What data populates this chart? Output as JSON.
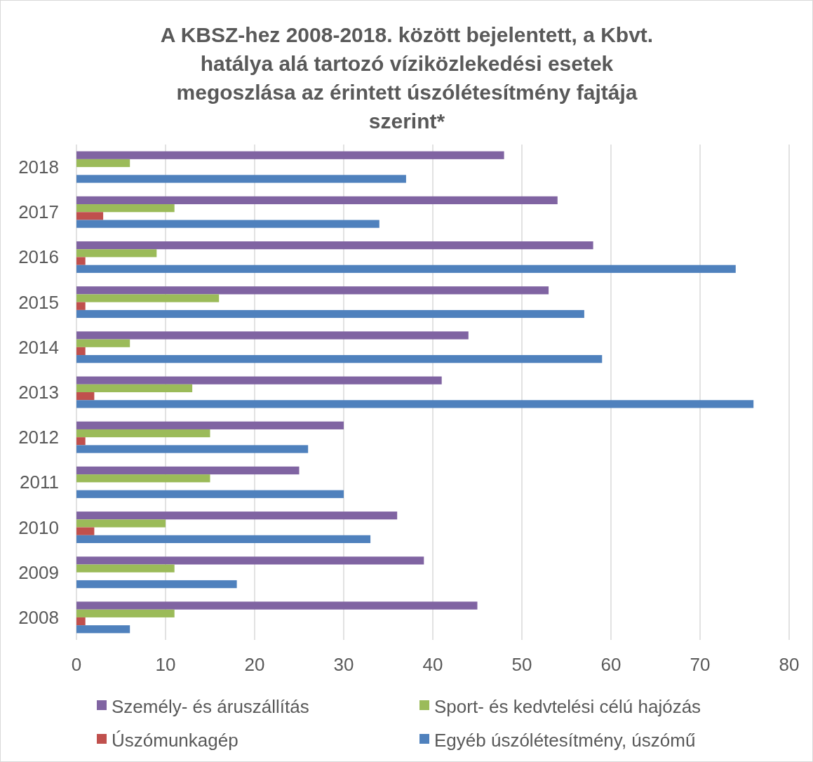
{
  "chart_data": {
    "type": "bar",
    "orientation": "horizontal",
    "title": "A KBSZ-hez 2008-2018. között bejelentett, a Kbvt. hatálya alá tartozó víziközlekedési esetek megoszlása az érintett úszólétesítmény fajtája szerint*",
    "categories": [
      "2018",
      "2017",
      "2016",
      "2015",
      "2014",
      "2013",
      "2012",
      "2011",
      "2010",
      "2009",
      "2008"
    ],
    "series": [
      {
        "name": "Személy- és áruszállítás",
        "color": "#8064a2",
        "values": [
          48,
          54,
          58,
          53,
          44,
          41,
          30,
          25,
          36,
          39,
          45
        ]
      },
      {
        "name": "Sport- és kedvtelési célú hajózás",
        "color": "#9bbb59",
        "values": [
          6,
          11,
          9,
          16,
          6,
          13,
          15,
          15,
          10,
          11,
          11
        ]
      },
      {
        "name": "Úszómunkagép",
        "color": "#c0504d",
        "values": [
          0,
          3,
          1,
          1,
          1,
          2,
          1,
          0,
          2,
          0,
          1
        ]
      },
      {
        "name": "Egyéb úszólétesítmény, úszómű",
        "color": "#4f81bd",
        "values": [
          37,
          34,
          74,
          57,
          59,
          76,
          26,
          30,
          33,
          18,
          6
        ]
      }
    ],
    "xlim": [
      0,
      80
    ],
    "xticks": [
      0,
      10,
      20,
      30,
      40,
      50,
      60,
      70,
      80
    ],
    "grid": "x",
    "legend": "bottom"
  }
}
